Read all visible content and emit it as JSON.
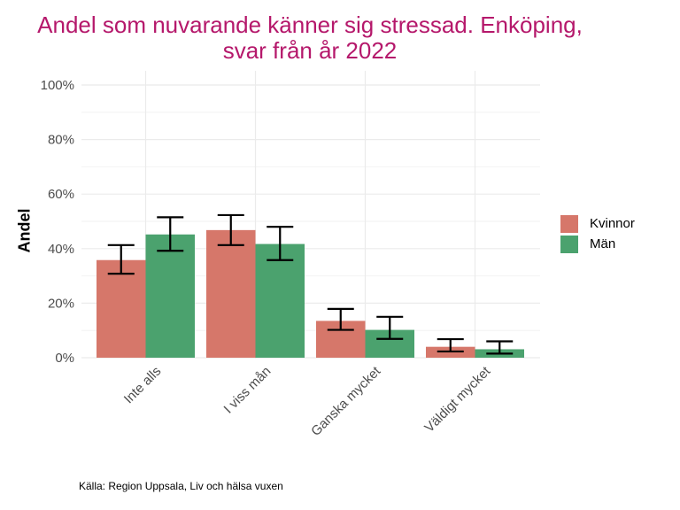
{
  "chart_data": {
    "type": "bar",
    "title_lines": [
      "Andel som nuvarande känner sig stressad. Enköping,",
      "svar från år 2022"
    ],
    "xlabel": "",
    "ylabel": "Andel",
    "ylim": [
      0,
      100
    ],
    "y_ticks": [
      "0%",
      "20%",
      "40%",
      "60%",
      "80%",
      "100%"
    ],
    "y_tick_values": [
      0,
      20,
      40,
      60,
      80,
      100
    ],
    "categories": [
      "Inte alls",
      "I viss mån",
      "Ganska mycket",
      "Väldigt mycket"
    ],
    "series": [
      {
        "name": "Kvinnor",
        "color": "#d6776a",
        "values": [
          35.8,
          46.8,
          13.5,
          4.0
        ],
        "ci_low": [
          30.8,
          41.3,
          10.2,
          2.3
        ],
        "ci_high": [
          41.3,
          52.3,
          17.9,
          6.8
        ]
      },
      {
        "name": "Män",
        "color": "#4ba26e",
        "values": [
          45.2,
          41.7,
          10.2,
          3.1
        ],
        "ci_low": [
          39.2,
          35.8,
          6.9,
          1.5
        ],
        "ci_high": [
          51.5,
          48.0,
          15.0,
          6.0
        ]
      }
    ],
    "grid": true,
    "legend_position": "right",
    "caption": "Källa: Region Uppsala, Liv och hälsa vuxen"
  }
}
